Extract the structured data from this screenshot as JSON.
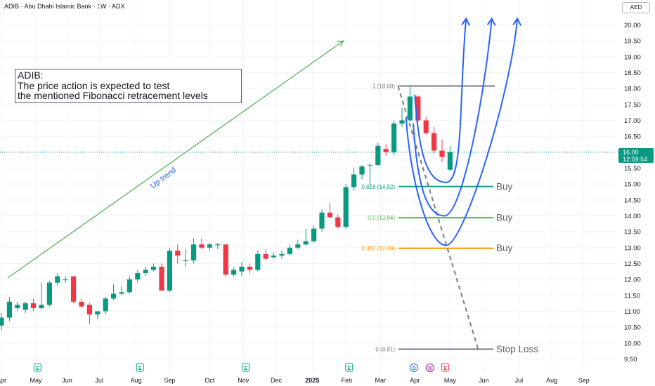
{
  "header": {
    "title": "ADIB · Abu Dhabi Islamic Bank · 1W · ADX",
    "currency": "AED"
  },
  "annotation": {
    "line1": "ADIB:",
    "line2": "The price action is expected to test",
    "line3": "the mentioned Fibonacci retracement levels"
  },
  "trend_label": "Up trend",
  "last_price": {
    "price": "16.00",
    "countdown": "12:59:54"
  },
  "colors": {
    "up": "#089981",
    "down": "#f23645",
    "trendline": "#4caf50",
    "arcs": "#2962ff",
    "fib_top": "#787b86",
    "fib_618": "#089981",
    "fib_50": "#4caf50",
    "fib_382": "#ff9800",
    "fib_zero": "#787b86",
    "projection": "#787b86"
  },
  "chart_data": {
    "type": "candlestick",
    "title": "ADIB · Abu Dhabi Islamic Bank · 1W · ADX",
    "y_unit": "AED",
    "ylim": [
      9.3,
      20.6
    ],
    "y_ticks": [
      "9.50",
      "10.00",
      "10.50",
      "11.00",
      "11.50",
      "12.00",
      "12.50",
      "13.00",
      "13.50",
      "14.00",
      "14.50",
      "15.00",
      "15.50",
      "16.00",
      "16.50",
      "17.00",
      "17.50",
      "18.00",
      "18.50",
      "19.00",
      "19.50",
      "20.00"
    ],
    "x_ticks": [
      "Apr",
      "May",
      "Jun",
      "Jul",
      "Aug",
      "Sep",
      "Oct",
      "Nov",
      "Dec",
      "2025",
      "Feb",
      "Mar",
      "Apr",
      "May",
      "Jun",
      "Jul",
      "Aug",
      "Sep"
    ],
    "x_tick_weeks": [
      0,
      4.3,
      8.2,
      12.2,
      16.8,
      21,
      26,
      30.2,
      34.3,
      38.8,
      43.1,
      47.3,
      51.6,
      56,
      60.2,
      64.6,
      68.7,
      72.7
    ],
    "event_markers": [
      {
        "week": 4.5,
        "label": "E"
      },
      {
        "week": 17.3,
        "label": "E"
      },
      {
        "week": 30.5,
        "label": "E"
      },
      {
        "week": 43.4,
        "label": "E"
      },
      {
        "week": 51.5,
        "label": "D"
      },
      {
        "week": 53.5,
        "label": "Ⓢ"
      },
      {
        "week": 55.4,
        "label": "E"
      }
    ],
    "candles": [
      {
        "o": 10.55,
        "h": 10.95,
        "l": 10.4,
        "c": 10.8
      },
      {
        "o": 10.8,
        "h": 11.45,
        "l": 10.7,
        "c": 11.3
      },
      {
        "o": 11.1,
        "h": 11.3,
        "l": 11.0,
        "c": 11.2
      },
      {
        "o": 11.05,
        "h": 11.3,
        "l": 10.95,
        "c": 11.25
      },
      {
        "o": 11.25,
        "h": 11.4,
        "l": 11.0,
        "c": 11.1
      },
      {
        "o": 11.1,
        "h": 11.9,
        "l": 11.05,
        "c": 11.2
      },
      {
        "o": 11.2,
        "h": 11.95,
        "l": 11.15,
        "c": 11.9
      },
      {
        "o": 11.9,
        "h": 12.2,
        "l": 11.8,
        "c": 12.1
      },
      {
        "o": 12.0,
        "h": 12.1,
        "l": 11.9,
        "c": 12.0
      },
      {
        "o": 12.1,
        "h": 12.1,
        "l": 11.25,
        "c": 11.3
      },
      {
        "o": 11.3,
        "h": 11.4,
        "l": 11.1,
        "c": 11.15
      },
      {
        "o": 11.2,
        "h": 11.25,
        "l": 10.6,
        "c": 10.9
      },
      {
        "o": 10.9,
        "h": 11.0,
        "l": 10.75,
        "c": 11.0
      },
      {
        "o": 11.0,
        "h": 11.45,
        "l": 10.9,
        "c": 11.4
      },
      {
        "o": 11.4,
        "h": 11.85,
        "l": 11.35,
        "c": 11.55
      },
      {
        "o": 11.55,
        "h": 11.8,
        "l": 11.5,
        "c": 11.6
      },
      {
        "o": 11.6,
        "h": 12.1,
        "l": 11.55,
        "c": 12.0
      },
      {
        "o": 12.0,
        "h": 12.3,
        "l": 11.9,
        "c": 12.2
      },
      {
        "o": 12.2,
        "h": 12.4,
        "l": 12.1,
        "c": 12.3
      },
      {
        "o": 12.3,
        "h": 12.5,
        "l": 12.25,
        "c": 12.4
      },
      {
        "o": 12.4,
        "h": 12.5,
        "l": 11.65,
        "c": 11.65
      },
      {
        "o": 11.65,
        "h": 13.0,
        "l": 11.6,
        "c": 12.9
      },
      {
        "o": 12.9,
        "h": 13.1,
        "l": 12.5,
        "c": 12.75
      },
      {
        "o": 12.6,
        "h": 12.95,
        "l": 12.4,
        "c": 12.6
      },
      {
        "o": 12.6,
        "h": 13.3,
        "l": 12.5,
        "c": 13.1
      },
      {
        "o": 13.1,
        "h": 13.3,
        "l": 12.95,
        "c": 13.0
      },
      {
        "o": 13.0,
        "h": 13.15,
        "l": 12.9,
        "c": 13.1
      },
      {
        "o": 13.1,
        "h": 13.15,
        "l": 12.95,
        "c": 13.1
      },
      {
        "o": 13.1,
        "h": 13.1,
        "l": 12.1,
        "c": 12.15
      },
      {
        "o": 12.15,
        "h": 12.4,
        "l": 12.1,
        "c": 12.3
      },
      {
        "o": 12.25,
        "h": 12.55,
        "l": 12.1,
        "c": 12.4
      },
      {
        "o": 12.4,
        "h": 12.5,
        "l": 12.2,
        "c": 12.3
      },
      {
        "o": 12.3,
        "h": 12.9,
        "l": 12.25,
        "c": 12.8
      },
      {
        "o": 12.8,
        "h": 12.95,
        "l": 12.6,
        "c": 12.65
      },
      {
        "o": 12.7,
        "h": 12.85,
        "l": 12.65,
        "c": 12.75
      },
      {
        "o": 12.75,
        "h": 12.9,
        "l": 12.65,
        "c": 12.8
      },
      {
        "o": 12.8,
        "h": 13.1,
        "l": 12.75,
        "c": 13.0
      },
      {
        "o": 13.0,
        "h": 13.25,
        "l": 12.95,
        "c": 13.1
      },
      {
        "o": 13.1,
        "h": 13.6,
        "l": 13.05,
        "c": 13.2
      },
      {
        "o": 13.2,
        "h": 13.7,
        "l": 13.15,
        "c": 13.6
      },
      {
        "o": 13.6,
        "h": 14.2,
        "l": 13.5,
        "c": 14.1
      },
      {
        "o": 14.1,
        "h": 14.4,
        "l": 14.0,
        "c": 13.95
      },
      {
        "o": 13.95,
        "h": 14.05,
        "l": 13.6,
        "c": 13.65
      },
      {
        "o": 13.65,
        "h": 15.0,
        "l": 13.6,
        "c": 14.9
      },
      {
        "o": 14.9,
        "h": 15.5,
        "l": 14.8,
        "c": 15.3
      },
      {
        "o": 15.3,
        "h": 15.6,
        "l": 15.15,
        "c": 15.55
      },
      {
        "o": 15.6,
        "h": 15.65,
        "l": 14.95,
        "c": 15.6
      },
      {
        "o": 15.6,
        "h": 16.3,
        "l": 15.55,
        "c": 16.2
      },
      {
        "o": 16.1,
        "h": 16.25,
        "l": 15.9,
        "c": 16.0
      },
      {
        "o": 16.0,
        "h": 17.0,
        "l": 15.9,
        "c": 16.9
      },
      {
        "o": 16.9,
        "h": 17.4,
        "l": 16.8,
        "c": 17.0
      },
      {
        "o": 17.0,
        "h": 18.08,
        "l": 16.95,
        "c": 17.75
      },
      {
        "o": 17.75,
        "h": 17.8,
        "l": 16.95,
        "c": 17.0
      },
      {
        "o": 17.0,
        "h": 17.1,
        "l": 16.55,
        "c": 16.6
      },
      {
        "o": 16.6,
        "h": 16.8,
        "l": 15.95,
        "c": 16.05
      },
      {
        "o": 16.05,
        "h": 16.4,
        "l": 15.7,
        "c": 15.85
      },
      {
        "o": 15.45,
        "h": 16.2,
        "l": 15.4,
        "c": 16.0
      }
    ],
    "fib_levels": [
      {
        "ratio": "1",
        "price": 18.08,
        "label": "1 (18.08)"
      },
      {
        "ratio": "0.618",
        "price": 14.92,
        "label": "0.618 (14.92)",
        "tag": "Buy"
      },
      {
        "ratio": "0.5",
        "price": 13.94,
        "label": "0.5 (13.94)",
        "tag": "Buy"
      },
      {
        "ratio": "0.382",
        "price": 12.98,
        "label": "0.382 (12.98)",
        "tag": "Buy"
      },
      {
        "ratio": "0",
        "price": 9.81,
        "label": "0 (9.81)",
        "tag": "Stop Loss"
      }
    ],
    "last_price": 16.0
  }
}
